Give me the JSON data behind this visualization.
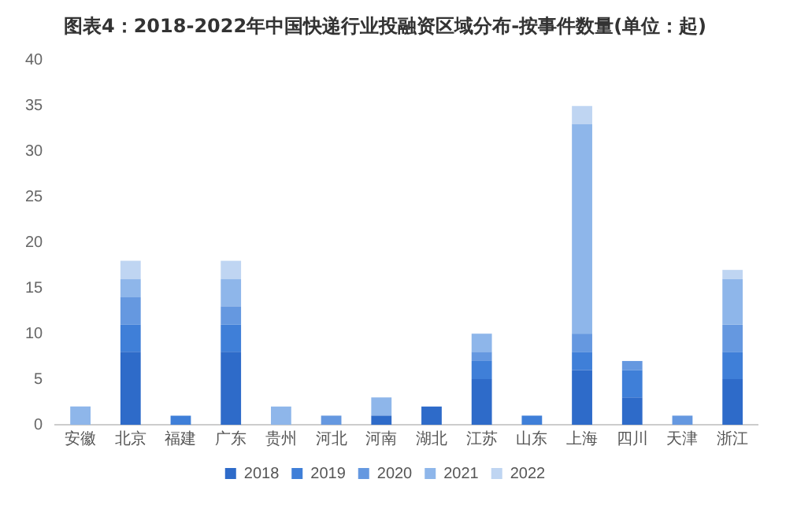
{
  "chart_data": {
    "type": "bar",
    "stacked": true,
    "title": "图表4：2018-2022年中国快递行业投融资区域分布-按事件数量(单位：起)",
    "categories": [
      "安徽",
      "北京",
      "福建",
      "广东",
      "贵州",
      "河北",
      "河南",
      "湖北",
      "江苏",
      "山东",
      "上海",
      "四川",
      "天津",
      "浙江"
    ],
    "series": [
      {
        "name": "2018",
        "color": "#2e6bc9",
        "values": [
          0,
          8,
          0,
          8,
          0,
          0,
          1,
          2,
          5,
          0,
          6,
          3,
          0,
          5
        ]
      },
      {
        "name": "2019",
        "color": "#3f7fd8",
        "values": [
          0,
          3,
          1,
          3,
          0,
          0,
          0,
          0,
          2,
          1,
          2,
          3,
          0,
          3
        ]
      },
      {
        "name": "2020",
        "color": "#6598e0",
        "values": [
          0,
          3,
          0,
          2,
          0,
          1,
          0,
          0,
          1,
          0,
          2,
          1,
          1,
          3
        ]
      },
      {
        "name": "2021",
        "color": "#8eb6ea",
        "values": [
          2,
          2,
          0,
          3,
          2,
          0,
          2,
          0,
          2,
          0,
          23,
          0,
          0,
          5
        ]
      },
      {
        "name": "2022",
        "color": "#bfd5f2",
        "values": [
          0,
          2,
          0,
          2,
          0,
          0,
          0,
          0,
          0,
          0,
          2,
          0,
          0,
          1
        ]
      }
    ],
    "ylim": [
      0,
      40
    ],
    "yticks": [
      0,
      5,
      10,
      15,
      20,
      25,
      30,
      35,
      40
    ],
    "grid": false,
    "legend": "bottom"
  }
}
